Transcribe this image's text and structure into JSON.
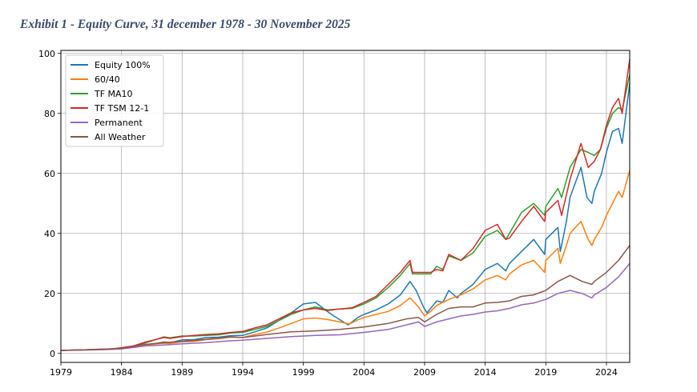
{
  "header": {
    "title": "Exhibit 1 - Equity Curve, 31 december 1978 - 30 November 2025"
  },
  "chart_data": {
    "type": "line",
    "title": "",
    "xlabel": "",
    "ylabel": "",
    "xlim": [
      1979,
      2025.92
    ],
    "ylim": [
      -3,
      101
    ],
    "grid": true,
    "legend_position": "top-left",
    "x_ticks": [
      1979,
      1984,
      1989,
      1994,
      1999,
      2004,
      2009,
      2014,
      2019,
      2024
    ],
    "y_ticks": [
      0,
      20,
      40,
      60,
      80,
      100
    ],
    "series": [
      {
        "name": "Equity 100%",
        "color": "#1f77b4",
        "points": [
          [
            1979,
            1
          ],
          [
            1981,
            1.2
          ],
          [
            1983,
            1.4
          ],
          [
            1984,
            1.6
          ],
          [
            1985,
            2
          ],
          [
            1986,
            2.7
          ],
          [
            1987.5,
            3.8
          ],
          [
            1988,
            3.6
          ],
          [
            1989,
            4.5
          ],
          [
            1990,
            4.6
          ],
          [
            1991,
            5.3
          ],
          [
            1992,
            5.4
          ],
          [
            1993,
            5.9
          ],
          [
            1994,
            6
          ],
          [
            1995,
            7.2
          ],
          [
            1996,
            8.5
          ],
          [
            1997,
            11
          ],
          [
            1998,
            13.5
          ],
          [
            1999,
            16.5
          ],
          [
            2000,
            17
          ],
          [
            2000.8,
            14.5
          ],
          [
            2001.5,
            12.5
          ],
          [
            2002.7,
            9.5
          ],
          [
            2003.5,
            12
          ],
          [
            2004,
            13
          ],
          [
            2005,
            14.5
          ],
          [
            2006,
            16.5
          ],
          [
            2007,
            19.5
          ],
          [
            2007.8,
            24
          ],
          [
            2008.3,
            21
          ],
          [
            2008.9,
            15.5
          ],
          [
            2009.2,
            13.5
          ],
          [
            2009.5,
            15
          ],
          [
            2010,
            17.5
          ],
          [
            2010.5,
            17
          ],
          [
            2011,
            21
          ],
          [
            2011.7,
            18.5
          ],
          [
            2012,
            20
          ],
          [
            2013,
            23
          ],
          [
            2014,
            28
          ],
          [
            2015,
            30
          ],
          [
            2015.7,
            27.5
          ],
          [
            2016,
            30
          ],
          [
            2017,
            34
          ],
          [
            2018,
            38
          ],
          [
            2018.9,
            33
          ],
          [
            2019,
            38
          ],
          [
            2020,
            42
          ],
          [
            2020.2,
            34
          ],
          [
            2020.7,
            44
          ],
          [
            2021,
            52
          ],
          [
            2021.9,
            62
          ],
          [
            2022.4,
            52
          ],
          [
            2022.8,
            50
          ],
          [
            2023,
            54
          ],
          [
            2023.6,
            60
          ],
          [
            2024,
            67
          ],
          [
            2024.5,
            74
          ],
          [
            2025,
            75
          ],
          [
            2025.3,
            70
          ],
          [
            2025.92,
            90
          ]
        ]
      },
      {
        "name": "60/40",
        "color": "#ff7f0e",
        "points": [
          [
            1979,
            1
          ],
          [
            1981,
            1.2
          ],
          [
            1983,
            1.5
          ],
          [
            1984,
            1.7
          ],
          [
            1985,
            2.2
          ],
          [
            1986,
            2.8
          ],
          [
            1987.5,
            3.4
          ],
          [
            1988,
            3.3
          ],
          [
            1989,
            3.9
          ],
          [
            1990,
            4
          ],
          [
            1991,
            4.6
          ],
          [
            1992,
            4.9
          ],
          [
            1993,
            5.4
          ],
          [
            1994,
            5.3
          ],
          [
            1995,
            6.3
          ],
          [
            1996,
            7.1
          ],
          [
            1997,
            8.5
          ],
          [
            1998,
            10
          ],
          [
            1999,
            11.5
          ],
          [
            2000,
            11.8
          ],
          [
            2001,
            11.3
          ],
          [
            2002,
            10.5
          ],
          [
            2002.8,
            9.8
          ],
          [
            2003.5,
            11.2
          ],
          [
            2004,
            12
          ],
          [
            2005,
            13
          ],
          [
            2006,
            14
          ],
          [
            2007,
            16
          ],
          [
            2007.8,
            18.5
          ],
          [
            2008.5,
            15.5
          ],
          [
            2009,
            12.5
          ],
          [
            2009.5,
            14
          ],
          [
            2010,
            16
          ],
          [
            2011,
            18
          ],
          [
            2012,
            19.5
          ],
          [
            2013,
            21.5
          ],
          [
            2014,
            24.5
          ],
          [
            2015,
            26
          ],
          [
            2015.7,
            24.5
          ],
          [
            2016,
            26.5
          ],
          [
            2017,
            29.5
          ],
          [
            2018,
            31
          ],
          [
            2018.9,
            27
          ],
          [
            2019,
            31
          ],
          [
            2020,
            35
          ],
          [
            2020.2,
            30
          ],
          [
            2020.7,
            36
          ],
          [
            2021,
            40
          ],
          [
            2021.9,
            44
          ],
          [
            2022.5,
            38
          ],
          [
            2022.8,
            36
          ],
          [
            2023,
            38
          ],
          [
            2023.6,
            42
          ],
          [
            2024,
            46
          ],
          [
            2024.5,
            50
          ],
          [
            2025,
            54
          ],
          [
            2025.3,
            52
          ],
          [
            2025.92,
            61
          ]
        ]
      },
      {
        "name": "TF MA10",
        "color": "#2ca02c",
        "points": [
          [
            1979,
            1
          ],
          [
            1981,
            1.2
          ],
          [
            1983,
            1.4
          ],
          [
            1984,
            1.8
          ],
          [
            1985,
            2.4
          ],
          [
            1986,
            3.5
          ],
          [
            1987.5,
            5.5
          ],
          [
            1988,
            5.2
          ],
          [
            1989,
            5.8
          ],
          [
            1990,
            5.8
          ],
          [
            1991,
            6
          ],
          [
            1992,
            6.2
          ],
          [
            1993,
            6.8
          ],
          [
            1994,
            7
          ],
          [
            1995,
            8
          ],
          [
            1996,
            9
          ],
          [
            1997,
            11
          ],
          [
            1998,
            13
          ],
          [
            1999,
            14.5
          ],
          [
            2000,
            15.5
          ],
          [
            2001,
            14.5
          ],
          [
            2002,
            14.8
          ],
          [
            2003,
            15
          ],
          [
            2004,
            16.5
          ],
          [
            2005,
            18.5
          ],
          [
            2006,
            22
          ],
          [
            2007,
            26
          ],
          [
            2007.8,
            30
          ],
          [
            2008,
            26.5
          ],
          [
            2009,
            26.5
          ],
          [
            2009.5,
            26.5
          ],
          [
            2010,
            29
          ],
          [
            2010.5,
            28
          ],
          [
            2011,
            32.5
          ],
          [
            2012,
            31
          ],
          [
            2013,
            33.5
          ],
          [
            2014,
            39
          ],
          [
            2015,
            41
          ],
          [
            2015.7,
            38
          ],
          [
            2016,
            40
          ],
          [
            2017,
            47
          ],
          [
            2018,
            50
          ],
          [
            2018.9,
            46
          ],
          [
            2019,
            49
          ],
          [
            2020,
            55
          ],
          [
            2020.3,
            52
          ],
          [
            2021,
            62
          ],
          [
            2021.9,
            68
          ],
          [
            2022.5,
            67
          ],
          [
            2023,
            66
          ],
          [
            2023.5,
            68
          ],
          [
            2024,
            75
          ],
          [
            2024.5,
            80
          ],
          [
            2025,
            82
          ],
          [
            2025.3,
            81
          ],
          [
            2025.92,
            93
          ]
        ]
      },
      {
        "name": "TF TSM 12-1",
        "color": "#d62728",
        "points": [
          [
            1979,
            1
          ],
          [
            1981,
            1.2
          ],
          [
            1983,
            1.4
          ],
          [
            1984,
            1.9
          ],
          [
            1985,
            2.5
          ],
          [
            1986,
            3.8
          ],
          [
            1987.5,
            5.3
          ],
          [
            1988,
            5
          ],
          [
            1989,
            5.6
          ],
          [
            1990,
            6
          ],
          [
            1991,
            6.3
          ],
          [
            1992,
            6.5
          ],
          [
            1993,
            7
          ],
          [
            1994,
            7.3
          ],
          [
            1995,
            8.5
          ],
          [
            1996,
            9.5
          ],
          [
            1997,
            11.5
          ],
          [
            1998,
            13.5
          ],
          [
            1999,
            14.5
          ],
          [
            2000,
            15
          ],
          [
            2001,
            14.3
          ],
          [
            2002,
            14.8
          ],
          [
            2003,
            15.2
          ],
          [
            2004,
            17
          ],
          [
            2005,
            19
          ],
          [
            2006,
            23
          ],
          [
            2007,
            27
          ],
          [
            2007.8,
            31
          ],
          [
            2008,
            27
          ],
          [
            2009,
            27
          ],
          [
            2009.5,
            27
          ],
          [
            2010,
            28
          ],
          [
            2010.5,
            27.5
          ],
          [
            2011,
            33
          ],
          [
            2012,
            31
          ],
          [
            2013,
            35
          ],
          [
            2014,
            41
          ],
          [
            2015,
            43
          ],
          [
            2015.7,
            38
          ],
          [
            2016,
            38.5
          ],
          [
            2017,
            44
          ],
          [
            2018,
            49
          ],
          [
            2018.9,
            44
          ],
          [
            2019,
            47
          ],
          [
            2020,
            51
          ],
          [
            2020.3,
            46
          ],
          [
            2021,
            58
          ],
          [
            2021.9,
            70
          ],
          [
            2022.5,
            62
          ],
          [
            2023,
            64
          ],
          [
            2023.5,
            68
          ],
          [
            2024,
            76
          ],
          [
            2024.5,
            82
          ],
          [
            2025,
            85
          ],
          [
            2025.3,
            80
          ],
          [
            2025.92,
            98
          ]
        ]
      },
      {
        "name": "Permanent",
        "color": "#9467bd",
        "points": [
          [
            1979,
            1
          ],
          [
            1981,
            1.1
          ],
          [
            1983,
            1.3
          ],
          [
            1984,
            1.5
          ],
          [
            1985,
            2
          ],
          [
            1986,
            2.5
          ],
          [
            1987.5,
            2.8
          ],
          [
            1989,
            3.2
          ],
          [
            1991,
            3.6
          ],
          [
            1993,
            4.2
          ],
          [
            1994,
            4.4
          ],
          [
            1996,
            5
          ],
          [
            1998,
            5.6
          ],
          [
            2000,
            6
          ],
          [
            2002,
            6.2
          ],
          [
            2004,
            7
          ],
          [
            2006,
            8
          ],
          [
            2007.5,
            9.5
          ],
          [
            2008.5,
            10.5
          ],
          [
            2009,
            9
          ],
          [
            2010,
            10.5
          ],
          [
            2011,
            11.5
          ],
          [
            2012,
            12.5
          ],
          [
            2013,
            13
          ],
          [
            2014,
            13.8
          ],
          [
            2015,
            14.2
          ],
          [
            2016,
            15
          ],
          [
            2017,
            16.2
          ],
          [
            2018,
            16.8
          ],
          [
            2019,
            18
          ],
          [
            2020,
            20
          ],
          [
            2021,
            21
          ],
          [
            2022,
            20
          ],
          [
            2022.8,
            18.5
          ],
          [
            2023,
            19.5
          ],
          [
            2024,
            22
          ],
          [
            2025,
            25.5
          ],
          [
            2025.92,
            30
          ]
        ]
      },
      {
        "name": "All Weather",
        "color": "#8c564b",
        "points": [
          [
            1979,
            1
          ],
          [
            1981,
            1.2
          ],
          [
            1983,
            1.5
          ],
          [
            1984,
            1.7
          ],
          [
            1985,
            2.3
          ],
          [
            1986,
            3
          ],
          [
            1987.5,
            3.6
          ],
          [
            1989,
            4
          ],
          [
            1991,
            4.7
          ],
          [
            1993,
            5.5
          ],
          [
            1994,
            5.3
          ],
          [
            1996,
            6.3
          ],
          [
            1998,
            7.2
          ],
          [
            2000,
            7.5
          ],
          [
            2002,
            8
          ],
          [
            2004,
            8.8
          ],
          [
            2006,
            10
          ],
          [
            2007.5,
            11.5
          ],
          [
            2008.5,
            12
          ],
          [
            2009,
            10.5
          ],
          [
            2010,
            13
          ],
          [
            2011,
            15
          ],
          [
            2012,
            15.5
          ],
          [
            2013,
            15.5
          ],
          [
            2014,
            16.8
          ],
          [
            2015,
            17
          ],
          [
            2016,
            17.5
          ],
          [
            2017,
            19
          ],
          [
            2018,
            19.5
          ],
          [
            2019,
            21
          ],
          [
            2020,
            24
          ],
          [
            2021,
            26
          ],
          [
            2022,
            24
          ],
          [
            2022.8,
            23
          ],
          [
            2023,
            24
          ],
          [
            2024,
            27
          ],
          [
            2025,
            31
          ],
          [
            2025.92,
            36
          ]
        ]
      }
    ]
  }
}
